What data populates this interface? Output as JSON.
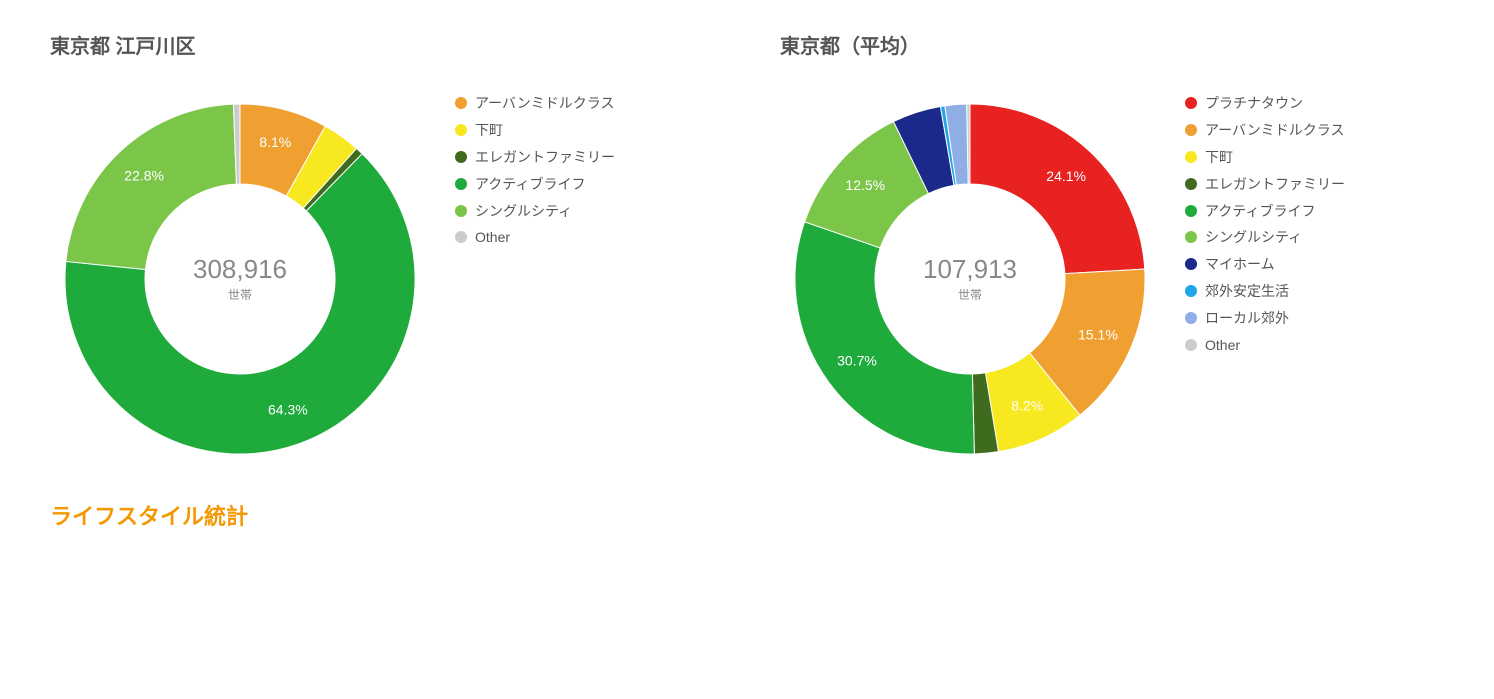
{
  "section_title": "ライフスタイル統計",
  "charts": [
    {
      "title": "東京都 江戸川区",
      "center_value": "308,916",
      "center_unit": "世帯",
      "donut": {
        "outer_radius": 175,
        "inner_radius": 95,
        "start_angle_deg": 0,
        "label_radius": 140,
        "label_min_pct": 5.0,
        "background": "#ffffff",
        "value_color": "#888888",
        "value_fontsize": 26,
        "unit_fontsize": 12,
        "label_fontsize": 14,
        "label_color": "#ffffff"
      },
      "slices": [
        {
          "label": "アーバンミドルクラス",
          "value": 8.1,
          "color": "#efa030",
          "show_pct": "8.1%"
        },
        {
          "label": "下町",
          "value": 3.5,
          "color": "#f7e81f",
          "show_pct": null
        },
        {
          "label": "エレガントファミリー",
          "value": 0.7,
          "color": "#3f6b1e",
          "show_pct": null
        },
        {
          "label": "アクティブライフ",
          "value": 64.3,
          "color": "#1faa3c",
          "show_pct": "64.3%"
        },
        {
          "label": "シングルシティ",
          "value": 22.8,
          "color": "#7bc548",
          "show_pct": "22.8%"
        },
        {
          "label": "Other",
          "value": 0.6,
          "color": "#cccccc",
          "show_pct": null
        }
      ],
      "legend": [
        {
          "label": "アーバンミドルクラス",
          "color": "#efa030"
        },
        {
          "label": "下町",
          "color": "#f7e81f"
        },
        {
          "label": "エレガントファミリー",
          "color": "#3f6b1e"
        },
        {
          "label": "アクティブライフ",
          "color": "#1faa3c"
        },
        {
          "label": "シングルシティ",
          "color": "#7bc548"
        },
        {
          "label": "Other",
          "color": "#cccccc"
        }
      ]
    },
    {
      "title": "東京都（平均）",
      "center_value": "107,913",
      "center_unit": "世帯",
      "donut": {
        "outer_radius": 175,
        "inner_radius": 95,
        "start_angle_deg": 0,
        "label_radius": 140,
        "label_min_pct": 5.0,
        "background": "#ffffff",
        "value_color": "#888888",
        "value_fontsize": 26,
        "unit_fontsize": 12,
        "label_fontsize": 14,
        "label_color": "#ffffff"
      },
      "slices": [
        {
          "label": "プラチナタウン",
          "value": 24.1,
          "color": "#e82121",
          "show_pct": "24.1%"
        },
        {
          "label": "アーバンミドルクラス",
          "value": 15.1,
          "color": "#efa030",
          "show_pct": "15.1%"
        },
        {
          "label": "下町",
          "value": 8.2,
          "color": "#f7e81f",
          "show_pct": "8.2%"
        },
        {
          "label": "エレガントファミリー",
          "value": 2.2,
          "color": "#3f6b1e",
          "show_pct": null
        },
        {
          "label": "アクティブライフ",
          "value": 30.7,
          "color": "#1faa3c",
          "show_pct": "30.7%"
        },
        {
          "label": "シングルシティ",
          "value": 12.5,
          "color": "#7bc548",
          "show_pct": "12.5%"
        },
        {
          "label": "マイホーム",
          "value": 4.5,
          "color": "#1b2a8a",
          "show_pct": null
        },
        {
          "label": "郊外安定生活",
          "value": 0.4,
          "color": "#1fa6e8",
          "show_pct": null
        },
        {
          "label": "ローカル郊外",
          "value": 2.0,
          "color": "#8faee6",
          "show_pct": null
        },
        {
          "label": "Other",
          "value": 0.3,
          "color": "#cccccc",
          "show_pct": null
        }
      ],
      "legend": [
        {
          "label": "プラチナタウン",
          "color": "#e82121"
        },
        {
          "label": "アーバンミドルクラス",
          "color": "#efa030"
        },
        {
          "label": "下町",
          "color": "#f7e81f"
        },
        {
          "label": "エレガントファミリー",
          "color": "#3f6b1e"
        },
        {
          "label": "アクティブライフ",
          "color": "#1faa3c"
        },
        {
          "label": "シングルシティ",
          "color": "#7bc548"
        },
        {
          "label": "マイホーム",
          "color": "#1b2a8a"
        },
        {
          "label": "郊外安定生活",
          "color": "#1fa6e8"
        },
        {
          "label": "ローカル郊外",
          "color": "#8faee6"
        },
        {
          "label": "Other",
          "color": "#cccccc"
        }
      ]
    }
  ]
}
